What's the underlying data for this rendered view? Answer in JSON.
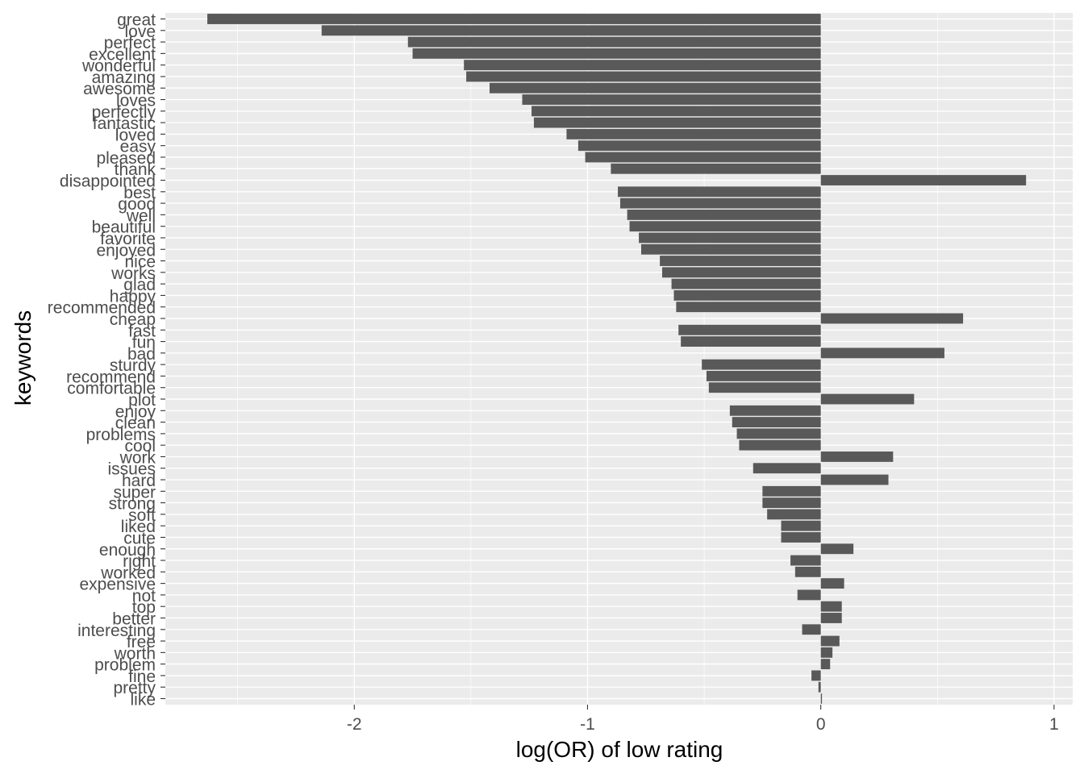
{
  "chart_data": {
    "type": "bar",
    "orientation": "horizontal",
    "xlabel": "log(OR) of low rating",
    "ylabel": "keywords",
    "xlim": [
      -2.81,
      1.08
    ],
    "xticks": [
      -2,
      -1,
      0,
      1
    ],
    "xtick_labels": [
      "-2",
      "-1",
      "0",
      "1"
    ],
    "grid": true,
    "bar_color": "#595959",
    "panel_color": "#EBEBEB",
    "categories": [
      "great",
      "love",
      "perfect",
      "excellent",
      "wonderful",
      "amazing",
      "awesome",
      "loves",
      "perfectly",
      "fantastic",
      "loved",
      "easy",
      "pleased",
      "thank",
      "disappointed",
      "best",
      "good",
      "well",
      "beautiful",
      "favorite",
      "enjoyed",
      "nice",
      "works",
      "glad",
      "happy",
      "recommended",
      "cheap",
      "fast",
      "fun",
      "bad",
      "sturdy",
      "recommend",
      "comfortable",
      "plot",
      "enjoy",
      "clean",
      "problems",
      "cool",
      "work",
      "issues",
      "hard",
      "super",
      "strong",
      "soft",
      "liked",
      "cute",
      "enough",
      "right",
      "worked",
      "expensive",
      "not",
      "top",
      "better",
      "interesting",
      "free",
      "worth",
      "problem",
      "fine",
      "pretty",
      "like"
    ],
    "values": [
      -2.63,
      -2.14,
      -1.77,
      -1.75,
      -1.53,
      -1.52,
      -1.42,
      -1.28,
      -1.24,
      -1.23,
      -1.09,
      -1.04,
      -1.01,
      -0.9,
      0.88,
      -0.87,
      -0.86,
      -0.83,
      -0.82,
      -0.78,
      -0.77,
      -0.69,
      -0.68,
      -0.64,
      -0.63,
      -0.62,
      0.61,
      -0.61,
      -0.6,
      0.53,
      -0.51,
      -0.49,
      -0.48,
      0.4,
      -0.39,
      -0.38,
      -0.36,
      -0.35,
      0.31,
      -0.29,
      0.29,
      -0.25,
      -0.25,
      -0.23,
      -0.17,
      -0.17,
      0.14,
      -0.13,
      -0.11,
      0.1,
      -0.1,
      0.09,
      0.09,
      -0.08,
      0.08,
      0.05,
      0.04,
      -0.04,
      -0.01,
      0.005
    ]
  }
}
